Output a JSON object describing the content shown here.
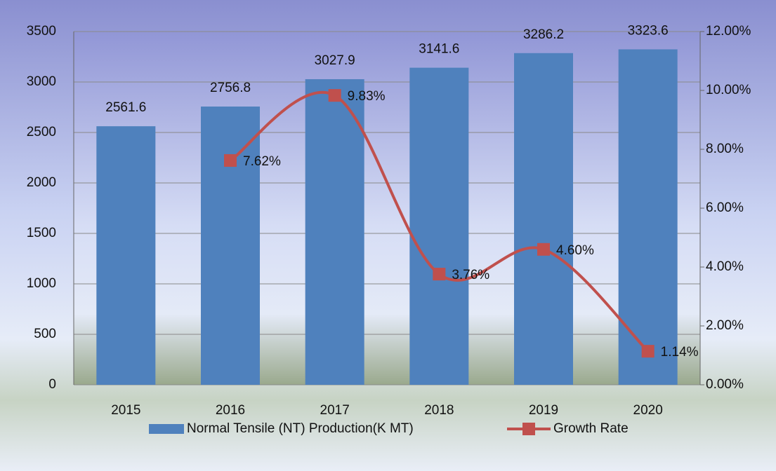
{
  "chart_data": {
    "type": "bar",
    "categories": [
      "2015",
      "2016",
      "2017",
      "2018",
      "2019",
      "2020"
    ],
    "series": [
      {
        "name": "Normal Tensile (NT) Production(K MT)",
        "color": "#4f81bd",
        "type": "bar",
        "values": [
          2561.6,
          2756.8,
          3027.9,
          3141.6,
          3286.2,
          3323.6
        ]
      },
      {
        "name": "Growth Rate",
        "color": "#c0504d",
        "type": "line",
        "axis": "y2",
        "smooth": true,
        "values": [
          null,
          7.62,
          9.83,
          3.76,
          4.6,
          1.14
        ],
        "value_labels": [
          null,
          "7.62%",
          "9.83%",
          "3.76%",
          "4.60%",
          "1.14%"
        ]
      }
    ],
    "ylim": [
      0,
      3500
    ],
    "yticks": [
      0,
      500,
      1000,
      1500,
      2000,
      2500,
      3000,
      3500
    ],
    "y2lim": [
      0,
      12
    ],
    "y2ticks": [
      {
        "value": 0,
        "label": "0.00%"
      },
      {
        "value": 2,
        "label": "2.00%"
      },
      {
        "value": 4,
        "label": "4.00%"
      },
      {
        "value": 6,
        "label": "6.00%"
      },
      {
        "value": 8,
        "label": "8.00%"
      },
      {
        "value": 10,
        "label": "10.00%"
      },
      {
        "value": 12,
        "label": "12.00%"
      }
    ],
    "grid": true,
    "legend": "bottom"
  }
}
